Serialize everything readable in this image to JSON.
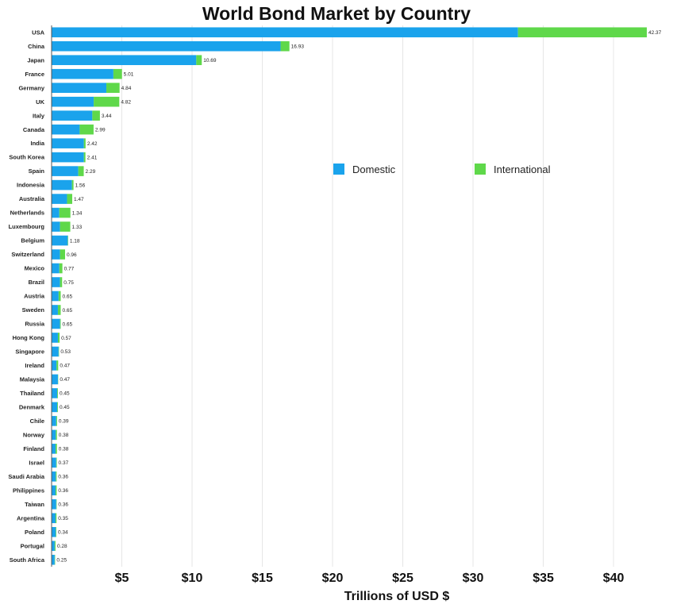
{
  "chart_data": {
    "type": "bar",
    "orientation": "horizontal",
    "stacked": true,
    "title": "World Bond Market by Country",
    "xlabel": "Trillions of USD $",
    "ylabel": "",
    "xlim": [
      0,
      42.37
    ],
    "x_ticks": [
      5,
      10,
      15,
      20,
      25,
      30,
      35,
      40
    ],
    "x_tick_labels": [
      "$5",
      "$10",
      "$15",
      "$20",
      "$25",
      "$30",
      "$35",
      "$40"
    ],
    "grid": true,
    "legend_position": "right-middle",
    "colors": {
      "Domestic": "#1aa3ec",
      "International": "#5fd84a"
    },
    "categories": [
      "USA",
      "China",
      "Japan",
      "France",
      "Germany",
      "UK",
      "Italy",
      "Canada",
      "India",
      "South Korea",
      "Spain",
      "Indonesia",
      "Australia",
      "Netherlands",
      "Luxembourg",
      "Belgium",
      "Switzerland",
      "Mexico",
      "Brazil",
      "Austria",
      "Sweden",
      "Russia",
      "Hong Kong",
      "Singapore",
      "Ireland",
      "Malaysia",
      "Thailand",
      "Denmark",
      "Chile",
      "Norway",
      "Finland",
      "Israel",
      "Saudi Arabia",
      "Philippines",
      "Taiwan",
      "Argentina",
      "Poland",
      "Portugal",
      "South Africa"
    ],
    "total_labels": [
      "42.37",
      "16.93",
      "10.69",
      "5.01",
      "4.84",
      "4.82",
      "3.44",
      "2.99",
      "2.42",
      "2.41",
      "2.29",
      "1.56",
      "1.47",
      "1.34",
      "1.33",
      "1.18",
      "0.96",
      "0.77",
      "0.75",
      "0.65",
      "0.65",
      "0.65",
      "0.57",
      "0.53",
      "0.47",
      "0.47",
      "0.45",
      "0.45",
      "0.39",
      "0.38",
      "0.38",
      "0.37",
      "0.36",
      "0.36",
      "0.36",
      "0.35",
      "0.34",
      "0.28",
      "0.25"
    ],
    "series": [
      {
        "name": "Domestic",
        "values": [
          33.2,
          16.3,
          10.3,
          4.4,
          3.9,
          3.0,
          2.9,
          2.0,
          2.3,
          2.3,
          1.9,
          1.45,
          1.1,
          0.55,
          0.6,
          1.15,
          0.6,
          0.55,
          0.6,
          0.5,
          0.45,
          0.6,
          0.45,
          0.5,
          0.35,
          0.45,
          0.4,
          0.4,
          0.33,
          0.3,
          0.28,
          0.33,
          0.3,
          0.28,
          0.33,
          0.28,
          0.3,
          0.22,
          0.22
        ]
      },
      {
        "name": "International",
        "values": [
          9.17,
          0.63,
          0.39,
          0.61,
          0.94,
          1.82,
          0.54,
          0.99,
          0.12,
          0.11,
          0.39,
          0.11,
          0.37,
          0.79,
          0.73,
          0.03,
          0.36,
          0.22,
          0.15,
          0.15,
          0.2,
          0.05,
          0.12,
          0.03,
          0.12,
          0.02,
          0.05,
          0.05,
          0.06,
          0.08,
          0.1,
          0.04,
          0.06,
          0.08,
          0.03,
          0.07,
          0.04,
          0.06,
          0.03
        ]
      }
    ]
  }
}
